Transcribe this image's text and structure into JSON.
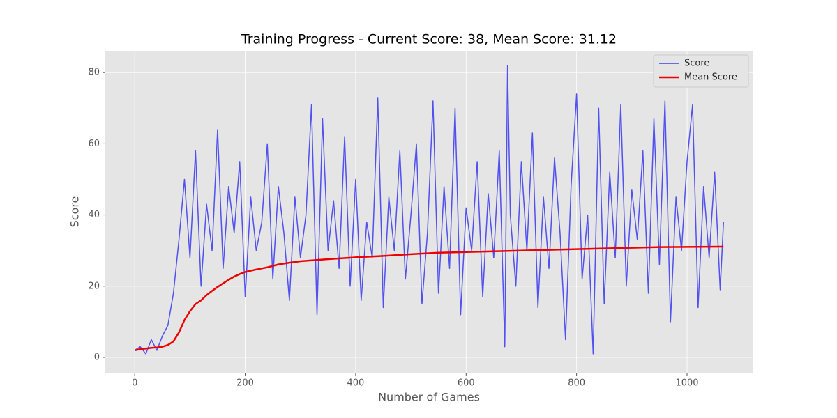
{
  "chart_data": {
    "type": "line",
    "title": "Training Progress - Current Score: 38, Mean Score: 31.12",
    "xlabel": "Number of Games",
    "ylabel": "Score",
    "xlim": [
      -53.3,
      1118.7
    ],
    "ylim": [
      -4.3,
      86.1
    ],
    "xticks": [
      0,
      200,
      400,
      600,
      800,
      1000
    ],
    "yticks": [
      0,
      20,
      40,
      60,
      80
    ],
    "grid": true,
    "legend": "upper right",
    "series": [
      {
        "name": "Score",
        "color": "#4040f0",
        "x": [
          0,
          10,
          20,
          30,
          40,
          50,
          60,
          70,
          80,
          90,
          100,
          110,
          120,
          130,
          140,
          150,
          160,
          170,
          180,
          190,
          200,
          210,
          220,
          230,
          240,
          250,
          260,
          270,
          280,
          290,
          300,
          310,
          320,
          330,
          340,
          350,
          360,
          370,
          380,
          390,
          400,
          410,
          420,
          430,
          440,
          450,
          460,
          470,
          480,
          490,
          500,
          510,
          520,
          530,
          540,
          550,
          560,
          570,
          580,
          590,
          600,
          610,
          620,
          630,
          640,
          650,
          660,
          670,
          675,
          680,
          690,
          700,
          710,
          720,
          730,
          740,
          750,
          760,
          770,
          780,
          790,
          800,
          810,
          820,
          830,
          840,
          850,
          860,
          870,
          880,
          890,
          900,
          910,
          920,
          930,
          940,
          950,
          960,
          970,
          980,
          990,
          1000,
          1010,
          1020,
          1030,
          1040,
          1050,
          1060,
          1066
        ],
        "values": [
          2,
          3,
          1,
          5,
          2,
          6,
          9,
          18,
          33,
          50,
          28,
          58,
          20,
          43,
          30,
          64,
          25,
          48,
          35,
          55,
          17,
          45,
          30,
          38,
          60,
          22,
          48,
          35,
          16,
          45,
          28,
          40,
          71,
          12,
          67,
          30,
          44,
          25,
          62,
          20,
          50,
          16,
          38,
          28,
          73,
          14,
          45,
          30,
          58,
          22,
          40,
          60,
          15,
          35,
          72,
          18,
          48,
          25,
          70,
          12,
          42,
          30,
          55,
          17,
          46,
          28,
          58,
          3,
          82,
          40,
          20,
          55,
          30,
          63,
          14,
          45,
          25,
          56,
          35,
          5,
          48,
          74,
          22,
          40,
          1,
          70,
          15,
          52,
          28,
          71,
          20,
          47,
          33,
          58,
          18,
          67,
          26,
          72,
          10,
          45,
          30,
          55,
          71,
          14,
          48,
          28,
          52,
          19,
          38
        ]
      },
      {
        "name": "Mean Score",
        "color": "#ee0000",
        "x": [
          0,
          10,
          20,
          30,
          40,
          50,
          60,
          70,
          80,
          90,
          100,
          110,
          120,
          130,
          140,
          150,
          160,
          170,
          180,
          190,
          200,
          220,
          240,
          260,
          280,
          300,
          350,
          400,
          450,
          500,
          550,
          600,
          650,
          700,
          750,
          800,
          850,
          900,
          950,
          1000,
          1066
        ],
        "values": [
          2,
          2.3,
          2.5,
          2.7,
          2.8,
          3,
          3.5,
          4.5,
          7,
          10.5,
          13,
          15,
          16,
          17.5,
          18.7,
          19.8,
          20.8,
          21.8,
          22.7,
          23.4,
          24,
          24.7,
          25.3,
          26.1,
          26.6,
          27,
          27.6,
          28.1,
          28.5,
          29,
          29.4,
          29.6,
          29.8,
          30,
          30.2,
          30.4,
          30.6,
          30.8,
          31,
          31.05,
          31.12
        ]
      }
    ]
  }
}
